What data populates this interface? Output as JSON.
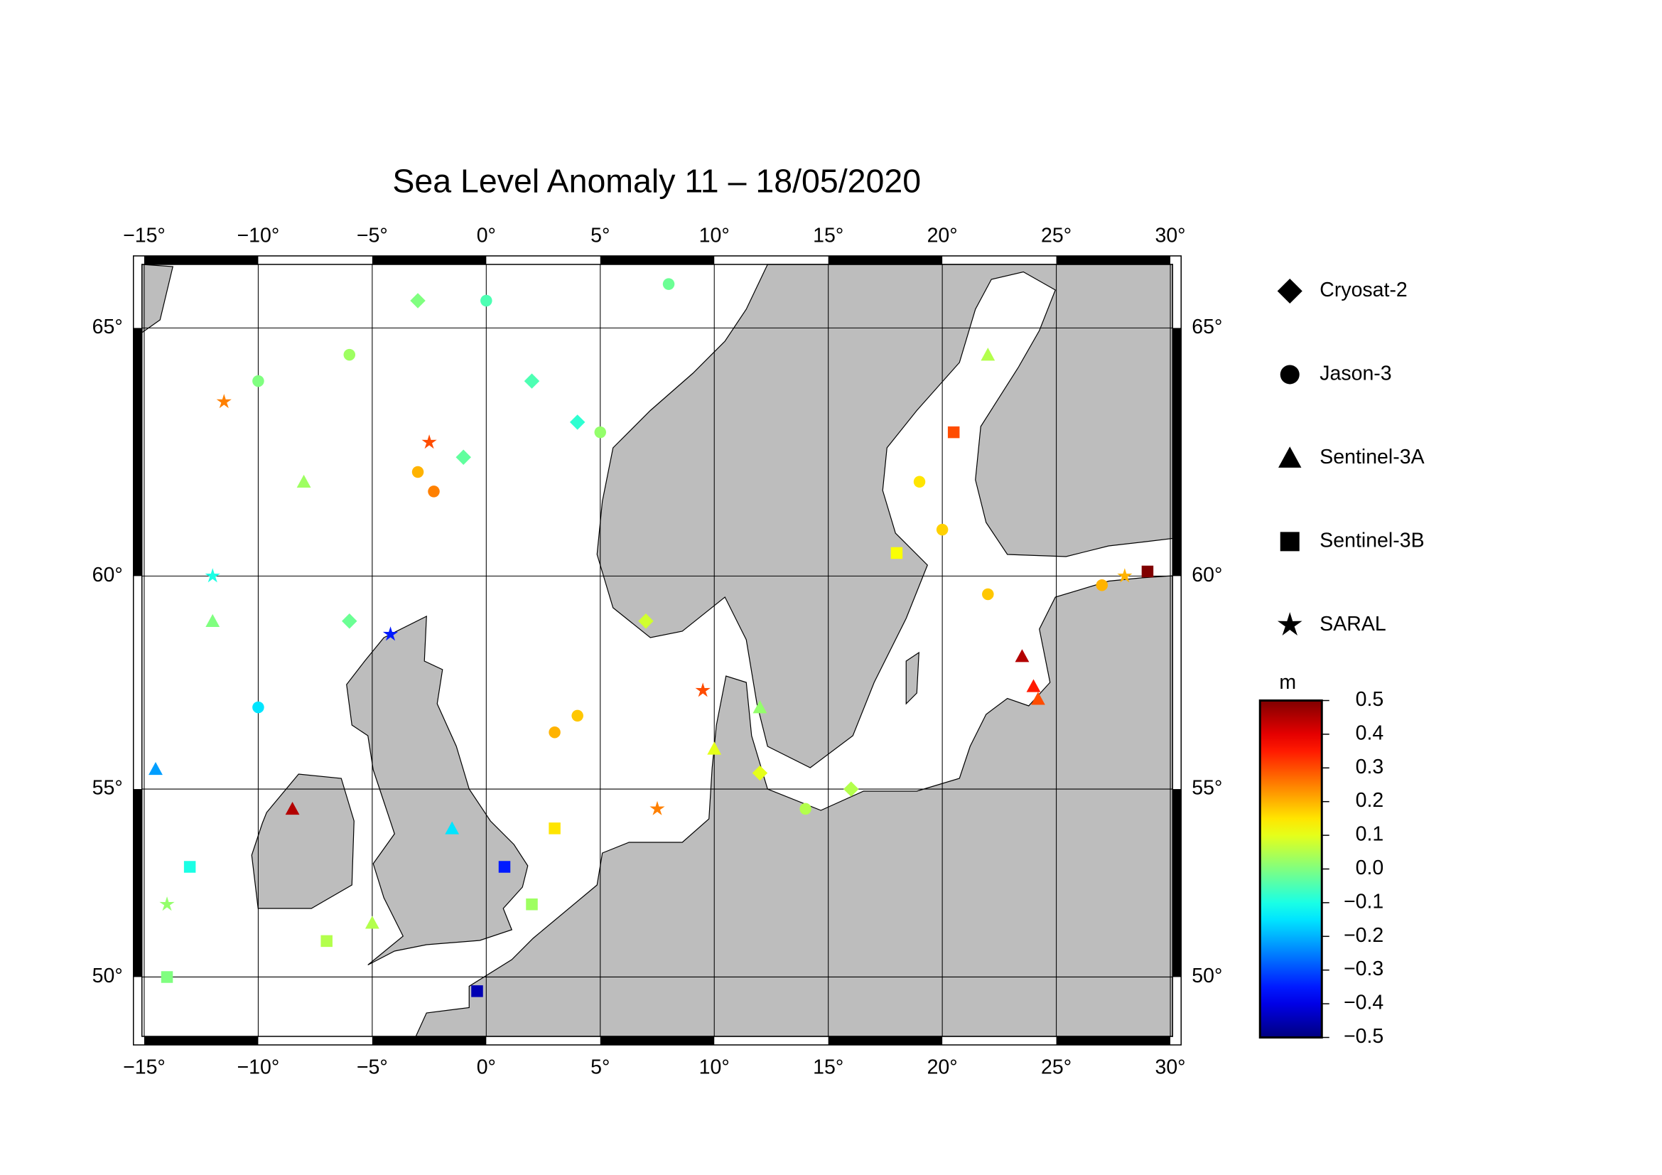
{
  "chart_data": {
    "type": "scatter",
    "title": "Sea Level Anomaly 11 – 18/05/2020",
    "projection": "mercator",
    "xlim": [
      -15.1,
      30.1
    ],
    "ylim": [
      48.3,
      66.15
    ],
    "xticks": [
      {
        "value": -15,
        "label": "−15°"
      },
      {
        "value": -10,
        "label": "−10°"
      },
      {
        "value": -5,
        "label": "−5°"
      },
      {
        "value": 0,
        "label": "0°"
      },
      {
        "value": 5,
        "label": "5°"
      },
      {
        "value": 10,
        "label": "10°"
      },
      {
        "value": 15,
        "label": "15°"
      },
      {
        "value": 20,
        "label": "20°"
      },
      {
        "value": 25,
        "label": "25°"
      },
      {
        "value": 30,
        "label": "30°"
      }
    ],
    "yticks": [
      {
        "value": 50,
        "label": "50°"
      },
      {
        "value": 55,
        "label": "55°"
      },
      {
        "value": 60,
        "label": "60°"
      },
      {
        "value": 65,
        "label": "65°"
      }
    ],
    "grid": true,
    "colorbar": {
      "label": "m",
      "lim": [
        -0.5,
        0.5
      ],
      "ticks": [
        0.5,
        0.4,
        0.3,
        0.2,
        0.1,
        {
          "value": 0,
          "label": "0.0"
        },
        {
          "value": -0.1,
          "label": "−0.1"
        },
        {
          "value": -0.2,
          "label": "−0.2"
        },
        {
          "value": -0.3,
          "label": "−0.3"
        },
        {
          "value": -0.4,
          "label": "−0.4"
        },
        {
          "value": -0.5,
          "label": "−0.5"
        }
      ]
    },
    "series": [
      {
        "name": "Cryosat-2",
        "marker": "diamond",
        "x": [
          2,
          -3,
          7,
          12,
          -6,
          16,
          4,
          -1
        ],
        "y": [
          64,
          65.5,
          59,
          55.4,
          59,
          55,
          63.2,
          62.5
        ],
        "values": [
          -0.05,
          0,
          0.08,
          0.1,
          -0.02,
          0.05,
          -0.08,
          -0.03
        ]
      },
      {
        "name": "Jason-3",
        "marker": "circle",
        "x": [
          -3,
          -2.3,
          -10,
          0,
          5,
          3,
          4,
          20,
          19,
          27,
          -10,
          14,
          22,
          -6,
          8
        ],
        "y": [
          62.2,
          61.8,
          64,
          65.5,
          63,
          56.4,
          56.8,
          61,
          62,
          59.8,
          57,
          54.5,
          59.6,
          64.5,
          65.8
        ],
        "values": [
          0.2,
          0.25,
          0,
          -0.05,
          0.02,
          0.2,
          0.18,
          0.17,
          0.15,
          0.2,
          -0.15,
          0.05,
          0.18,
          0.03,
          -0.02
        ]
      },
      {
        "name": "Sentinel-3A",
        "marker": "triangle",
        "x": [
          23.5,
          24,
          24.2,
          -8.5,
          -14.5,
          -1.5,
          10,
          -5,
          22,
          -12,
          12,
          -8
        ],
        "y": [
          58.2,
          57.5,
          57.2,
          54.5,
          55.5,
          54,
          56,
          51.5,
          64.5,
          59,
          57,
          62
        ],
        "values": [
          0.45,
          0.35,
          0.3,
          0.45,
          -0.22,
          -0.15,
          0.1,
          0.05,
          0.05,
          0,
          0.02,
          0.03
        ]
      },
      {
        "name": "Sentinel-3B",
        "marker": "square",
        "x": [
          29,
          0.8,
          -0.4,
          -13,
          -14,
          3,
          18,
          2,
          -7,
          20.5
        ],
        "y": [
          60.1,
          53,
          49.6,
          53,
          50,
          54,
          60.5,
          52,
          51,
          63
        ],
        "values": [
          0.5,
          -0.35,
          -0.45,
          -0.1,
          0,
          0.15,
          0.12,
          0.03,
          0.05,
          0.3
        ]
      },
      {
        "name": "SARAL",
        "marker": "star",
        "x": [
          -4.2,
          -11.5,
          9.5,
          28,
          -12,
          7.5,
          -14,
          -2.5
        ],
        "y": [
          58.7,
          63.6,
          57.4,
          60,
          60,
          54.5,
          52,
          62.8
        ],
        "values": [
          -0.35,
          0.25,
          0.3,
          0.2,
          -0.1,
          0.25,
          0.02,
          0.3
        ]
      }
    ]
  }
}
